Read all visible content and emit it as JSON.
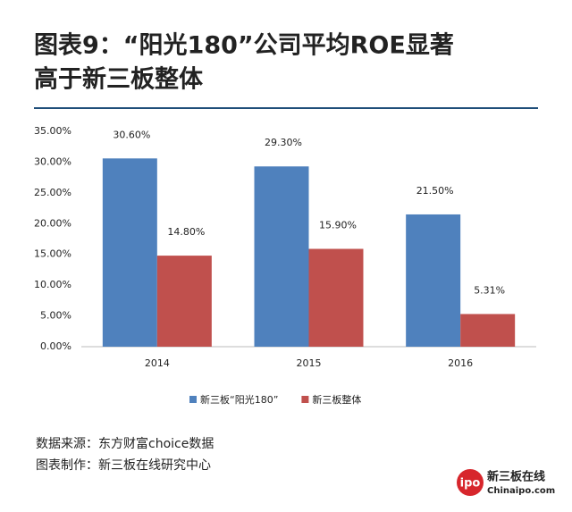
{
  "chart_data": {
    "type": "bar",
    "title": [
      "图表9：“阳光180”公司平均ROE显著",
      "高于新三板整体"
    ],
    "categories": [
      "2014",
      "2015",
      "2016"
    ],
    "series": [
      {
        "name": "新三板“阳光180”",
        "color": "#4f81bd",
        "values": [
          30.6,
          29.3,
          21.5
        ],
        "value_labels": [
          "30.60%",
          "29.30%",
          "21.50%"
        ]
      },
      {
        "name": "新三板整体",
        "color": "#c0504d",
        "values": [
          14.8,
          15.9,
          5.31
        ],
        "value_labels": [
          "14.80%",
          "15.90%",
          "5.31%"
        ]
      }
    ],
    "ylim": [
      0,
      35
    ],
    "yticks": [
      {
        "value": 0,
        "label": "0.00%"
      },
      {
        "value": 5,
        "label": "5.00%"
      },
      {
        "value": 10,
        "label": "10.00%"
      },
      {
        "value": 15,
        "label": "15.00%"
      },
      {
        "value": 20,
        "label": "20.00%"
      },
      {
        "value": 25,
        "label": "25.00%"
      },
      {
        "value": 30,
        "label": "30.00%"
      },
      {
        "value": 35,
        "label": "35.00%"
      }
    ],
    "grid": false,
    "legend": "bottom",
    "notes": [
      "数据来源：东方财富choice数据",
      "图表制作：新三板在线研究中心"
    ],
    "logo": {
      "mark": "ipo",
      "name": "新三板在线",
      "site": "Chinaipo.com"
    }
  }
}
